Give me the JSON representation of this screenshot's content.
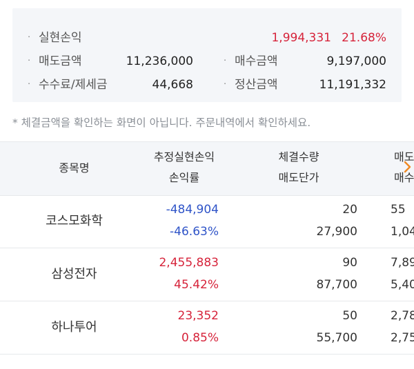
{
  "summary": {
    "realized_label": "실현손익",
    "realized_amount": "1,994,331",
    "realized_rate": "21.68%",
    "sell_label": "매도금액",
    "sell_value": "11,236,000",
    "buy_label": "매수금액",
    "buy_value": "9,197,000",
    "fee_label": "수수료/제세금",
    "fee_value": "44,668",
    "settle_label": "정산금액",
    "settle_value": "11,191,332"
  },
  "notice": "* 체결금액을 확인하는 화면이 아닙니다. 주문내역에서 확인하세요.",
  "table": {
    "headers": {
      "name": "종목명",
      "pnl_line1": "추정실현손익",
      "pnl_line2": "손익률",
      "qty_line1": "체결수량",
      "qty_line2": "매도단가",
      "next_line1": "매도",
      "next_line2": "매수"
    },
    "rows": [
      {
        "name": "코스모화학",
        "pnl": "-484,904",
        "rate": "-46.63%",
        "qty": "20",
        "price": "27,900",
        "next1": "55",
        "next2": "1,04",
        "sign": "neg"
      },
      {
        "name": "삼성전자",
        "pnl": "2,455,883",
        "rate": "45.42%",
        "qty": "90",
        "price": "87,700",
        "next1": "7,89",
        "next2": "5,40",
        "sign": "pos"
      },
      {
        "name": "하나투어",
        "pnl": "23,352",
        "rate": "0.85%",
        "qty": "50",
        "price": "55,700",
        "next1": "2,78",
        "next2": "2,75",
        "sign": "pos"
      }
    ]
  },
  "colors": {
    "positive": "#d6233a",
    "negative": "#2f54c8",
    "accent": "#f08a24"
  },
  "icons": {
    "scroll_right": "chevron-right-icon"
  }
}
